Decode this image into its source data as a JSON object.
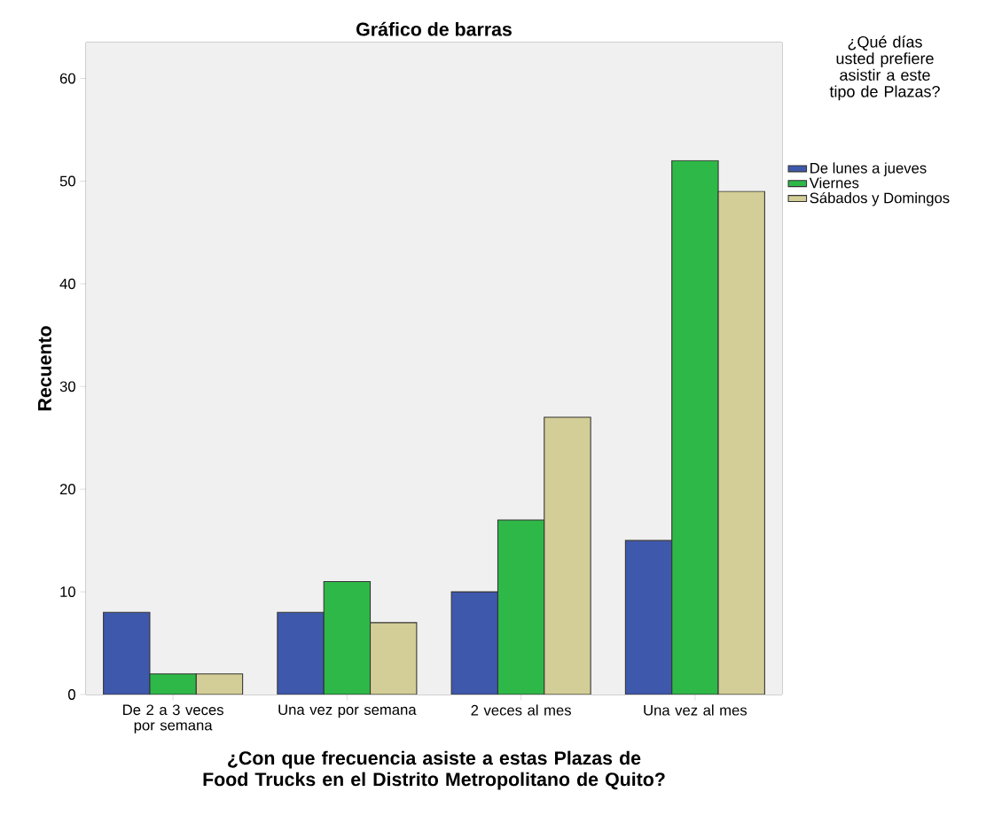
{
  "chart_data": {
    "type": "bar",
    "title": "Gráfico de barras",
    "xlabel": "¿Con que frecuencia asiste a estas Plazas de Food Trucks en el Distrito Metropolitano de Quito?",
    "ylabel": "Recuento",
    "legend_title": "¿Qué días usted prefiere asistir a este tipo de Plazas?",
    "categories": [
      "De 2 a 3 veces por semana",
      "Una vez por semana",
      "2 veces al mes",
      "Una vez al mes"
    ],
    "series": [
      {
        "name": "De lunes a jueves",
        "color": "#3e58ac",
        "values": [
          8,
          8,
          10,
          15
        ]
      },
      {
        "name": "Viernes",
        "color": "#2eb848",
        "values": [
          2,
          11,
          17,
          52
        ]
      },
      {
        "name": "Sábados y Domingos",
        "color": "#d3ce97",
        "values": [
          2,
          7,
          27,
          49
        ]
      }
    ],
    "ylim": [
      0,
      63.5
    ],
    "yticks": [
      0,
      10,
      20,
      30,
      40,
      50,
      60
    ],
    "legend": "right"
  }
}
